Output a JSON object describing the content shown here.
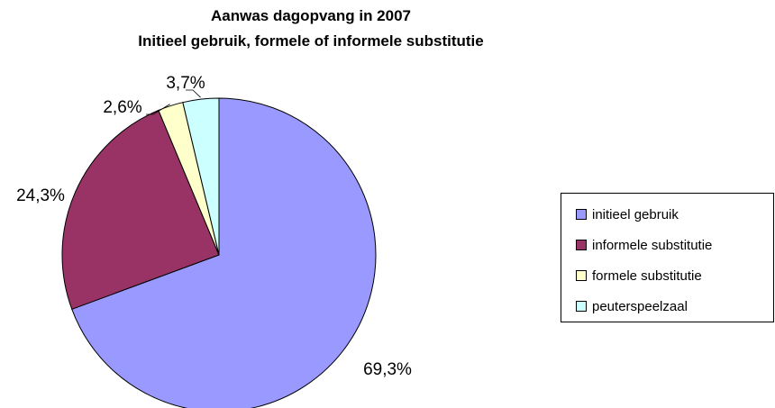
{
  "chart_data": {
    "type": "pie",
    "title": "Aanwas dagopvang in 2007",
    "subtitle": "Initieel gebruik, formele of informele substitutie",
    "slices": [
      {
        "label": "initieel gebruik",
        "value": 69.3,
        "value_label": "69,3%",
        "color": "#9999ff"
      },
      {
        "label": "informele substitutie",
        "value": 24.3,
        "value_label": "24,3%",
        "color": "#993366"
      },
      {
        "label": "formele substitutie",
        "value": 2.6,
        "value_label": "2,6%",
        "color": "#ffffcc"
      },
      {
        "label": "peuterspeelzaal",
        "value": 3.7,
        "value_label": "3,7%",
        "color": "#ccffff"
      }
    ],
    "legend_position": "right"
  }
}
